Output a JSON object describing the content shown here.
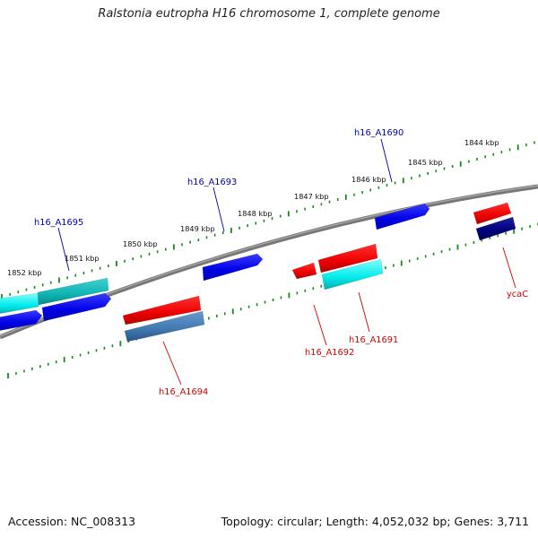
{
  "title": "Ralstonia eutropha H16 chromosome 1, complete genome",
  "footer": {
    "accession": "Accession: NC_008313",
    "summary": "Topology: circular; Length: 4,052,032 bp; Genes: 3,711"
  },
  "ticks": [
    "1852 kbp",
    "1851 kbp",
    "1850 kbp",
    "1849 kbp",
    "1848 kbp",
    "1847 kbp",
    "1846 kbp",
    "1845 kbp",
    "1844 kbp"
  ],
  "genes": [
    {
      "label": "h16_A1695",
      "color": "#0000aa"
    },
    {
      "label": "h16_A1693",
      "color": "#0000aa"
    },
    {
      "label": "h16_A1690",
      "color": "#0000aa"
    },
    {
      "label": "h16_A1694",
      "color": "#cc0000"
    },
    {
      "label": "h16_A1692",
      "color": "#cc0000"
    },
    {
      "label": "h16_A1691",
      "color": "#cc0000"
    },
    {
      "label": "ycaC",
      "color": "#cc0000"
    }
  ],
  "colors": {
    "backbone": "#808080",
    "tick": "#1a8a1a",
    "forward_gene": "#0000ee",
    "reverse_gene": "#ee0000",
    "cyan_gene": "#00e0e0",
    "teal_gene": "#10b8b8",
    "steel_gene": "#3f78b0",
    "navy_gene": "#00007a"
  }
}
